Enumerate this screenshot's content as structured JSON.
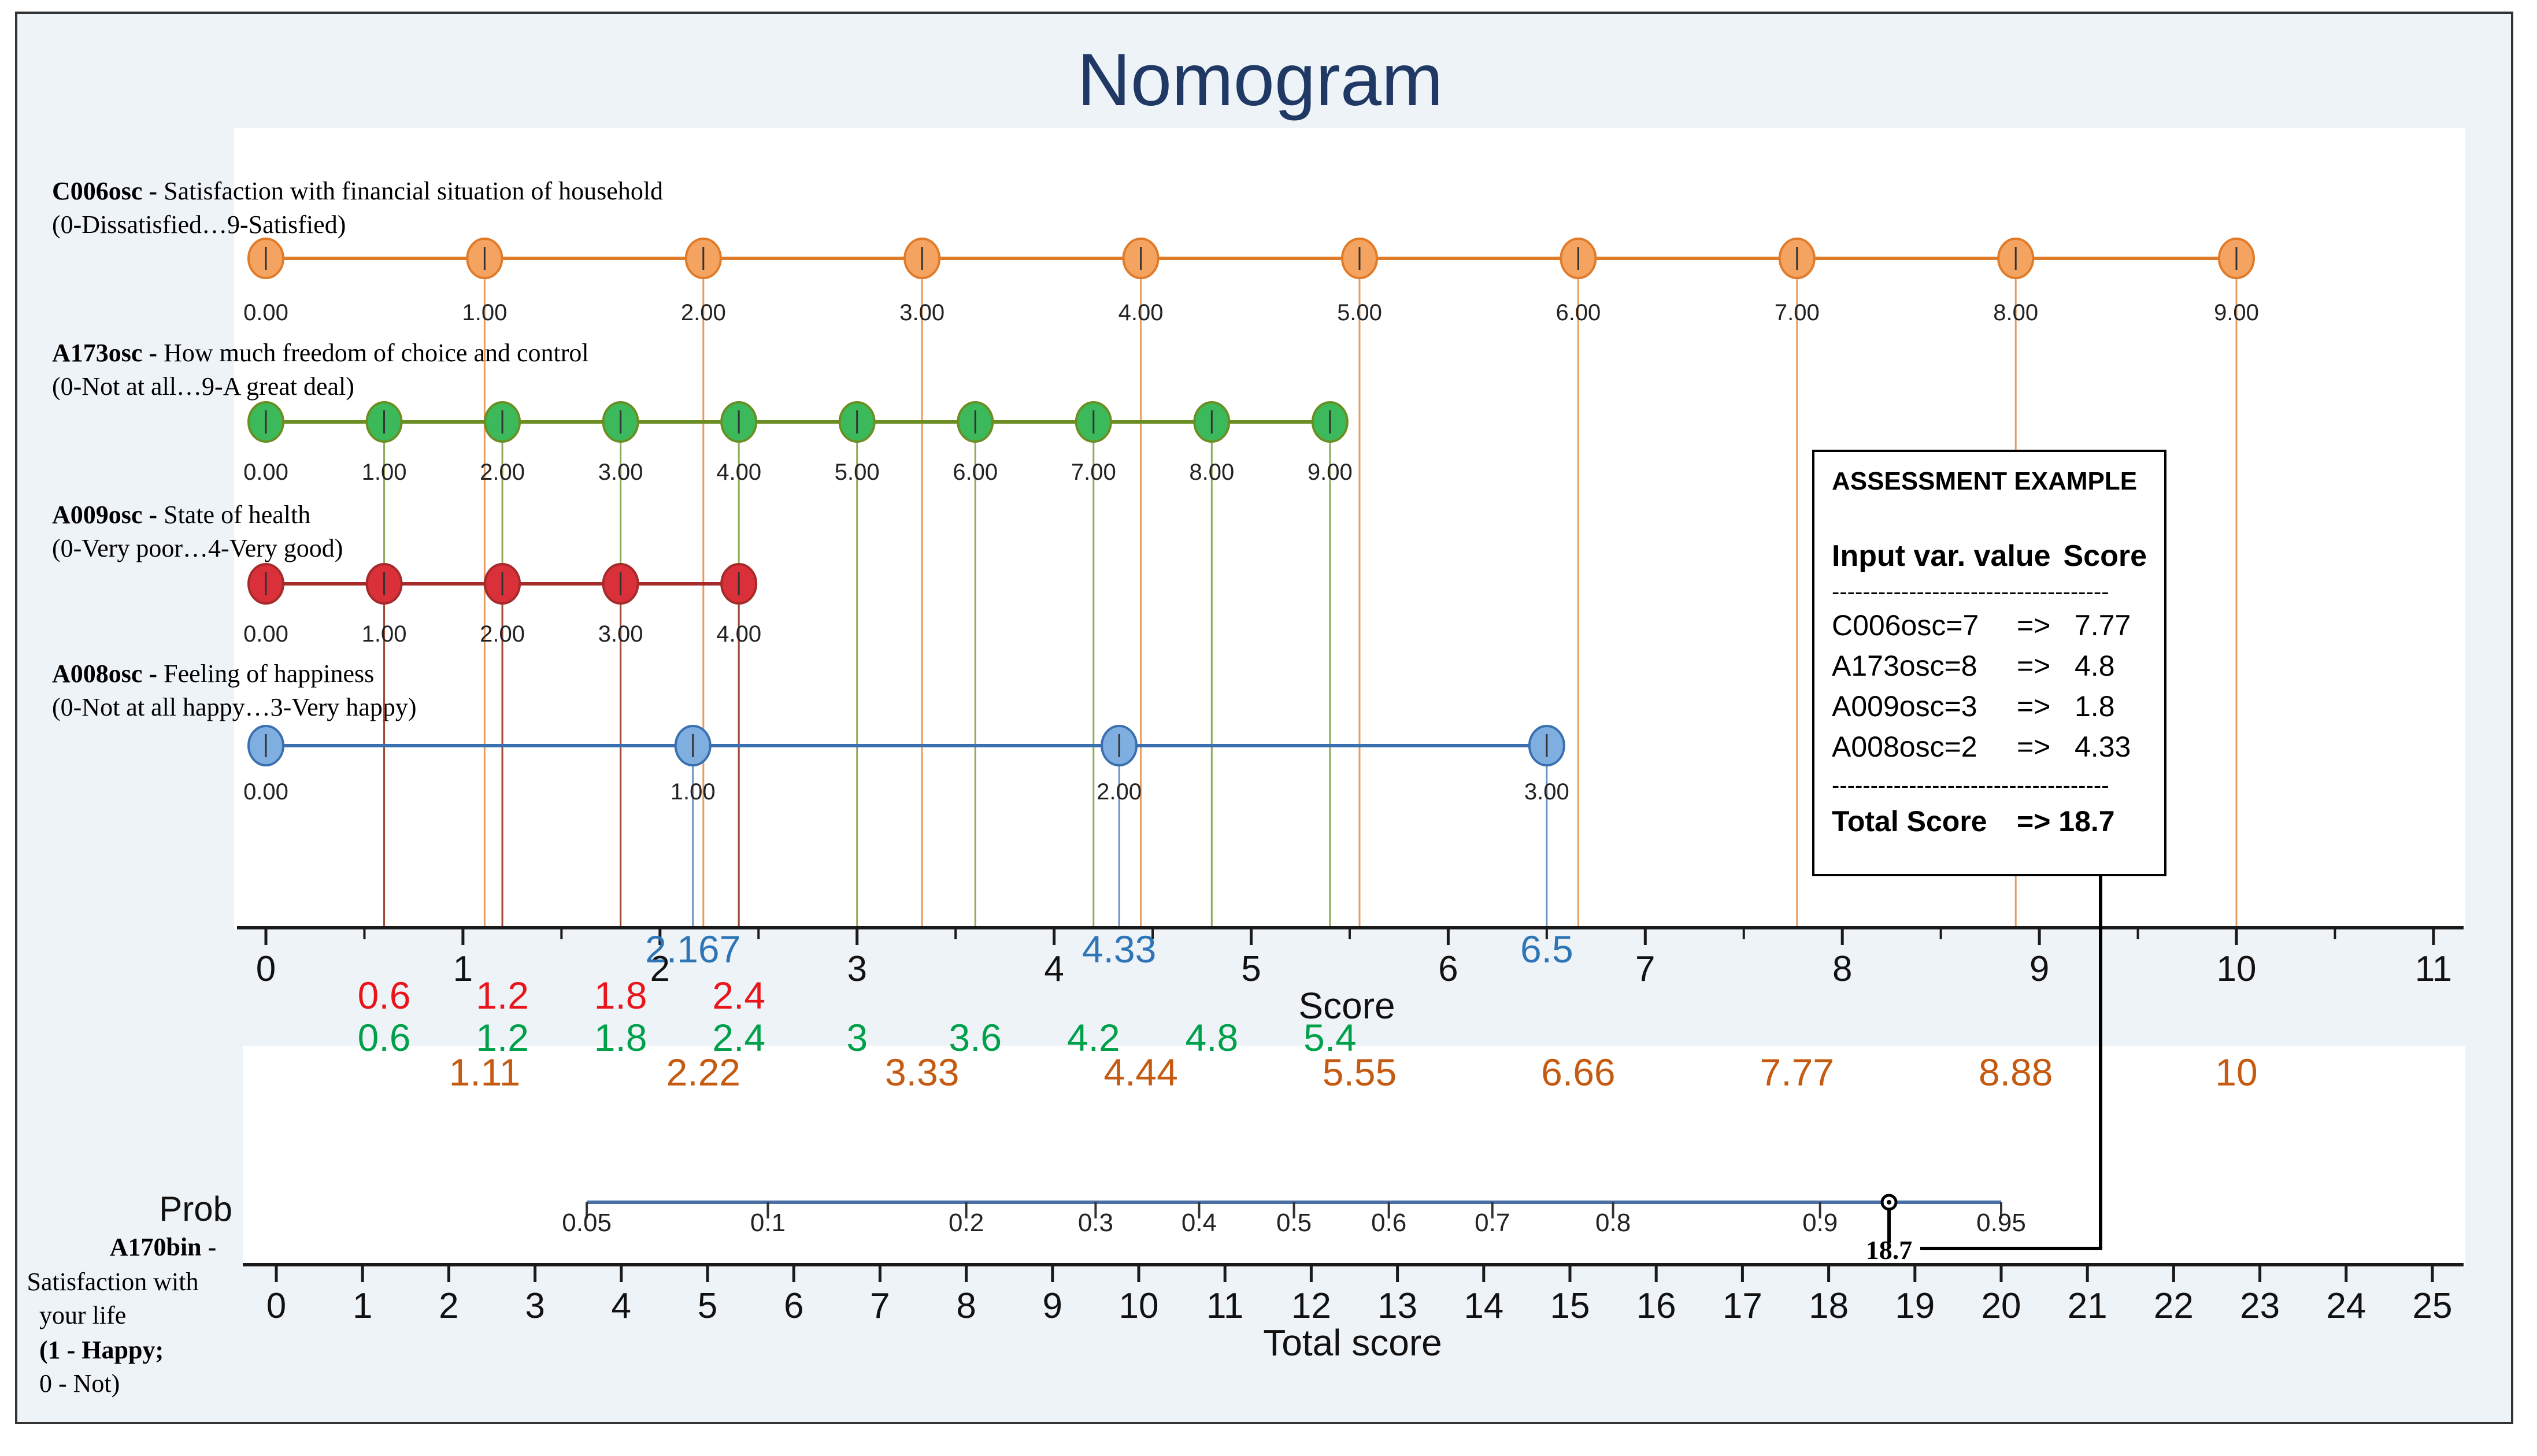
{
  "chart_data": {
    "type": "nomogram",
    "title": "Nomogram",
    "predictors": [
      {
        "name": "C006osc",
        "label_bold": "C006osc -",
        "description": " Satisfaction with financial situation of household",
        "range_text": "(0-Dissatisfied…9-Satisfied)",
        "color": "#F4A460",
        "line_color": "#E07B2A",
        "values": [
          0,
          1,
          2,
          3,
          4,
          5,
          6,
          7,
          8,
          9
        ],
        "tick_labels": [
          "0.00",
          "1.00",
          "2.00",
          "3.00",
          "4.00",
          "5.00",
          "6.00",
          "7.00",
          "8.00",
          "9.00"
        ],
        "scores": [
          0,
          1.11,
          2.22,
          3.33,
          4.44,
          5.55,
          6.66,
          7.77,
          8.88,
          10
        ],
        "score_labels": [
          "1.11",
          "2.22",
          "3.33",
          "4.44",
          "5.55",
          "6.66",
          "7.77",
          "8.88",
          "10"
        ],
        "score_label_color": "#C55A11"
      },
      {
        "name": "A173osc",
        "label_bold": "A173osc -",
        "description": " How much freedom of choice and control",
        "range_text": "(0-Not at all…9-A great deal)",
        "color": "#3CB95A",
        "line_color": "#6B8E23",
        "values": [
          0,
          1,
          2,
          3,
          4,
          5,
          6,
          7,
          8,
          9
        ],
        "tick_labels": [
          "0.00",
          "1.00",
          "2.00",
          "3.00",
          "4.00",
          "5.00",
          "6.00",
          "7.00",
          "8.00",
          "9.00"
        ],
        "scores": [
          0,
          0.6,
          1.2,
          1.8,
          2.4,
          3,
          3.6,
          4.2,
          4.8,
          5.4
        ],
        "score_labels": [
          "0.6",
          "1.2",
          "1.8",
          "2.4",
          "3",
          "3.6",
          "4.2",
          "4.8",
          "5.4"
        ],
        "score_label_color": "#00A04A"
      },
      {
        "name": "A009osc",
        "label_bold": "A009osc -",
        "description": " State of health",
        "range_text": "(0-Very poor…4-Very good)",
        "color": "#D9303A",
        "line_color": "#A52A2A",
        "values": [
          0,
          1,
          2,
          3,
          4
        ],
        "tick_labels": [
          "0.00",
          "1.00",
          "2.00",
          "3.00",
          "4.00"
        ],
        "scores": [
          0,
          0.6,
          1.2,
          1.8,
          2.4
        ],
        "score_labels": [
          "0.6",
          "1.2",
          "1.8",
          "2.4"
        ],
        "score_label_color": "#E8151B"
      },
      {
        "name": "A008osc",
        "label_bold": "A008osc -",
        "description": " Feeling of happiness",
        "range_text": "(0-Not at all happy…3-Very happy)",
        "color": "#7FAEE0",
        "line_color": "#3A6FB0",
        "values": [
          0,
          1,
          2,
          3
        ],
        "tick_labels": [
          "0.00",
          "1.00",
          "2.00",
          "3.00"
        ],
        "scores": [
          0,
          2.167,
          4.33,
          6.5
        ],
        "score_labels": [
          "2.167",
          "4.33",
          "6.5"
        ],
        "score_label_color": "#2E75B6"
      }
    ],
    "score_axis": {
      "label": "Score",
      "range": [
        0,
        11
      ],
      "ticks": [
        0,
        1,
        2,
        3,
        4,
        5,
        6,
        7,
        8,
        9,
        10,
        11
      ]
    },
    "prob_axis": {
      "label": "Prob",
      "ticks": [
        0.05,
        0.1,
        0.2,
        0.3,
        0.4,
        0.5,
        0.6,
        0.7,
        0.8,
        0.9,
        0.95
      ],
      "tick_labels": [
        "0.05",
        "0.1",
        "0.2",
        "0.3",
        "0.4",
        "0.5",
        "0.6",
        "0.7",
        "0.8",
        "0.9",
        "0.95"
      ],
      "total_score_positions": [
        3.6,
        5.7,
        8,
        9.5,
        10.7,
        11.8,
        12.9,
        14.1,
        15.5,
        17.9,
        20
      ]
    },
    "total_axis": {
      "label": "Total score",
      "range": [
        0,
        25
      ],
      "ticks": [
        0,
        1,
        2,
        3,
        4,
        5,
        6,
        7,
        8,
        9,
        10,
        11,
        12,
        13,
        14,
        15,
        16,
        17,
        18,
        19,
        20,
        21,
        22,
        23,
        24,
        25
      ]
    },
    "outcome": {
      "name_bold": "A170bin -",
      "line1": "Satisfaction with",
      "line2": "your life",
      "line3_bold": "(1 - Happy;",
      "line4": " 0 - Not)"
    },
    "marker": {
      "total_score": 18.7,
      "label": "18.7"
    }
  },
  "assessment": {
    "title": "ASSESSMENT EXAMPLE",
    "header_left": "Input var. value",
    "header_right": "Score",
    "separator": "------------------------------------",
    "rows": [
      {
        "input": "C006osc=7",
        "arrow": "=>",
        "score": "7.77"
      },
      {
        "input": "A173osc=8",
        "arrow": "=>",
        "score": "4.8"
      },
      {
        "input": "A009osc=3",
        "arrow": "=>",
        "score": "1.8"
      },
      {
        "input": "A008osc=2",
        "arrow": "=>",
        "score": "4.33"
      }
    ],
    "separator2": "------------------------------------",
    "total_label": "Total Score",
    "total_value": "=> 18.7"
  },
  "colors": {
    "title": "#1F3864",
    "frame_bg": "#EEF3F8",
    "plot_bg": "#FFFFFF",
    "axis": "#1a1a1a"
  }
}
